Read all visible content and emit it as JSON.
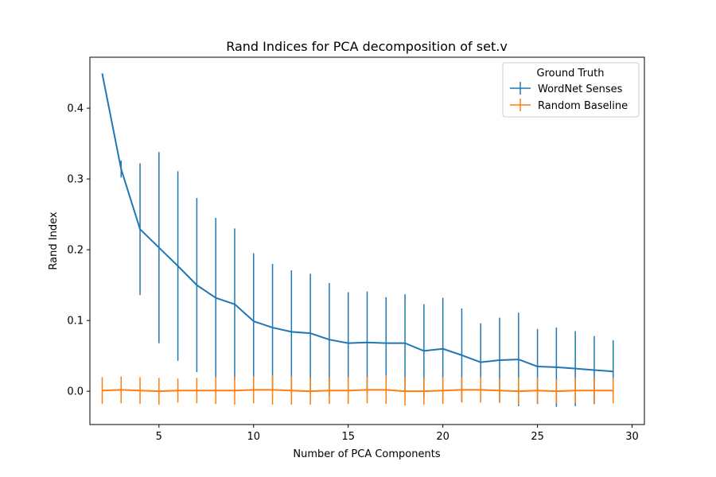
{
  "chart_data": {
    "type": "line",
    "title": "Rand Indices for PCA decomposition of set.v",
    "xlabel": "Number of PCA Components",
    "ylabel": "Rand Index",
    "xlim": [
      1.35,
      30.65
    ],
    "ylim": [
      -0.047,
      0.472
    ],
    "xticks": [
      5,
      10,
      15,
      20,
      25,
      30
    ],
    "xtick_labels": [
      "5",
      "10",
      "15",
      "20",
      "25",
      "30"
    ],
    "yticks": [
      0.0,
      0.1,
      0.2,
      0.3,
      0.4
    ],
    "ytick_labels": [
      "0.0",
      "0.1",
      "0.2",
      "0.3",
      "0.4"
    ],
    "grid": false,
    "legend": {
      "title": "Ground Truth",
      "placement": "upper-right"
    },
    "x": [
      2,
      3,
      4,
      5,
      6,
      7,
      8,
      9,
      10,
      11,
      12,
      13,
      14,
      15,
      16,
      17,
      18,
      19,
      20,
      21,
      22,
      23,
      24,
      25,
      26,
      27,
      28,
      29
    ],
    "series": [
      {
        "name": "WordNet Senses",
        "color": "#1f77b4",
        "values": [
          0.449,
          0.314,
          0.229,
          0.203,
          0.177,
          0.15,
          0.132,
          0.123,
          0.099,
          0.09,
          0.084,
          0.082,
          0.073,
          0.068,
          0.069,
          0.068,
          0.068,
          0.057,
          0.06,
          0.051,
          0.041,
          0.044,
          0.045,
          0.035,
          0.034,
          0.032,
          0.03,
          0.028
        ],
        "errors": [
          0.0,
          0.012,
          0.093,
          0.135,
          0.134,
          0.123,
          0.113,
          0.107,
          0.096,
          0.09,
          0.087,
          0.084,
          0.08,
          0.072,
          0.072,
          0.065,
          0.069,
          0.066,
          0.072,
          0.066,
          0.055,
          0.06,
          0.066,
          0.053,
          0.056,
          0.053,
          0.048,
          0.044
        ]
      },
      {
        "name": "Random Baseline",
        "color": "#ff7f0e",
        "values": [
          0.001,
          0.002,
          0.001,
          0.0,
          0.001,
          0.001,
          0.001,
          0.001,
          0.002,
          0.002,
          0.001,
          0.0,
          0.001,
          0.001,
          0.002,
          0.002,
          0.0,
          0.0,
          0.001,
          0.002,
          0.002,
          0.001,
          0.0,
          0.001,
          0.0,
          0.001,
          0.001,
          0.001
        ],
        "errors": [
          0.019,
          0.019,
          0.019,
          0.019,
          0.017,
          0.018,
          0.019,
          0.02,
          0.019,
          0.021,
          0.02,
          0.019,
          0.019,
          0.019,
          0.019,
          0.02,
          0.02,
          0.019,
          0.019,
          0.018,
          0.018,
          0.017,
          0.019,
          0.018,
          0.017,
          0.018,
          0.018,
          0.018
        ]
      }
    ]
  }
}
